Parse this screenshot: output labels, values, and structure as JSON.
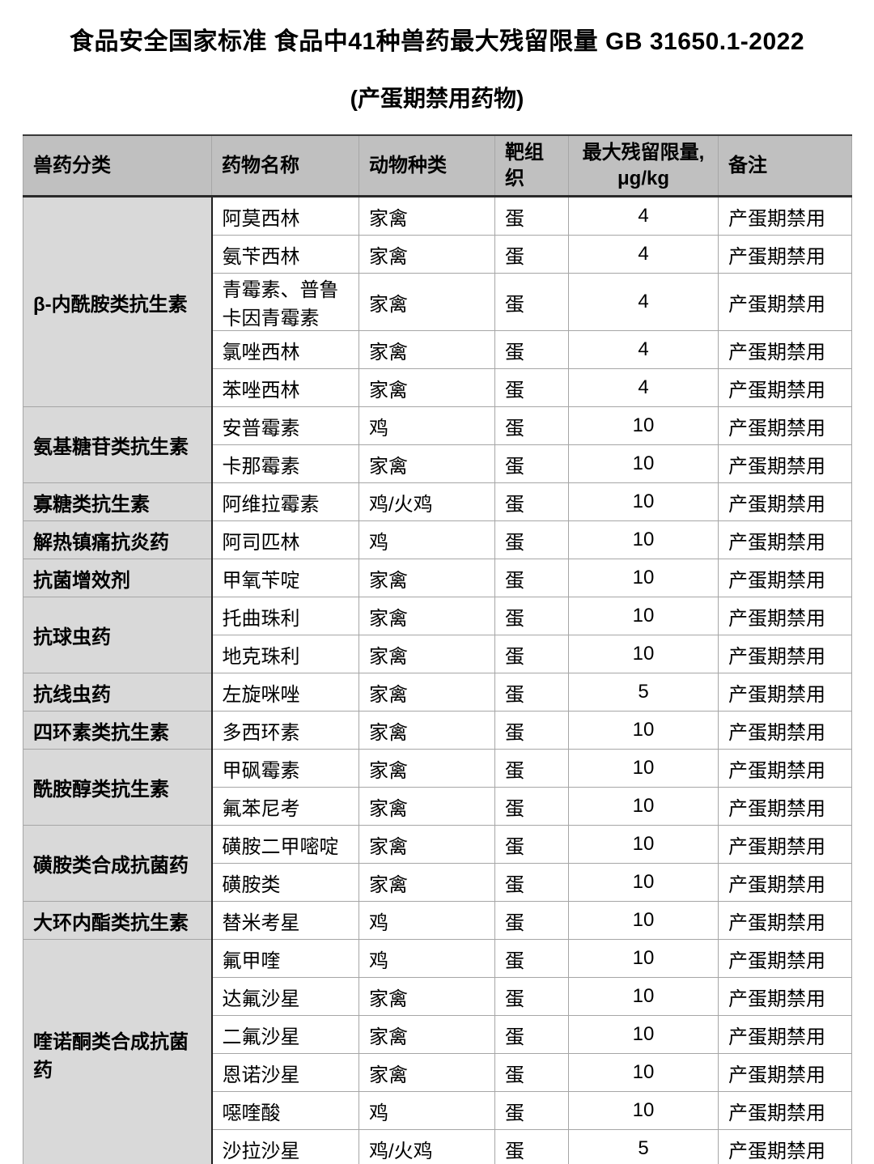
{
  "title": "食品安全国家标准 食品中41种兽药最大残留限量 GB 31650.1-2022",
  "subtitle": "(产蛋期禁用药物)",
  "table": {
    "headers": {
      "classification": "兽药分类",
      "drug": "药物名称",
      "species": "动物种类",
      "tissue": "靶组织",
      "mrl_line1": "最大残留限量,",
      "mrl_line2": "μg/kg",
      "note": "备注"
    },
    "groups": [
      {
        "category": "β-内酰胺类抗生素",
        "rows": [
          {
            "drug": "阿莫西林",
            "species": "家禽",
            "tissue": "蛋",
            "mrl": "4",
            "note": "产蛋期禁用"
          },
          {
            "drug": "氨苄西林",
            "species": "家禽",
            "tissue": "蛋",
            "mrl": "4",
            "note": "产蛋期禁用"
          },
          {
            "drug": "青霉素、普鲁卡因青霉素",
            "species": "家禽",
            "tissue": "蛋",
            "mrl": "4",
            "note": "产蛋期禁用"
          },
          {
            "drug": "氯唑西林",
            "species": "家禽",
            "tissue": "蛋",
            "mrl": "4",
            "note": "产蛋期禁用"
          },
          {
            "drug": "苯唑西林",
            "species": "家禽",
            "tissue": "蛋",
            "mrl": "4",
            "note": "产蛋期禁用"
          }
        ]
      },
      {
        "category": "氨基糖苷类抗生素",
        "rows": [
          {
            "drug": "安普霉素",
            "species": "鸡",
            "tissue": "蛋",
            "mrl": "10",
            "note": "产蛋期禁用"
          },
          {
            "drug": "卡那霉素",
            "species": "家禽",
            "tissue": "蛋",
            "mrl": "10",
            "note": "产蛋期禁用"
          }
        ]
      },
      {
        "category": "寡糖类抗生素",
        "rows": [
          {
            "drug": "阿维拉霉素",
            "species": "鸡/火鸡",
            "tissue": "蛋",
            "mrl": "10",
            "note": "产蛋期禁用"
          }
        ]
      },
      {
        "category": "解热镇痛抗炎药",
        "rows": [
          {
            "drug": "阿司匹林",
            "species": "鸡",
            "tissue": "蛋",
            "mrl": "10",
            "note": "产蛋期禁用"
          }
        ]
      },
      {
        "category": "抗菌增效剂",
        "rows": [
          {
            "drug": "甲氧苄啶",
            "species": "家禽",
            "tissue": "蛋",
            "mrl": "10",
            "note": "产蛋期禁用"
          }
        ]
      },
      {
        "category": "抗球虫药",
        "rows": [
          {
            "drug": "托曲珠利",
            "species": "家禽",
            "tissue": "蛋",
            "mrl": "10",
            "note": "产蛋期禁用"
          },
          {
            "drug": "地克珠利",
            "species": "家禽",
            "tissue": "蛋",
            "mrl": "10",
            "note": "产蛋期禁用"
          }
        ]
      },
      {
        "category": "抗线虫药",
        "rows": [
          {
            "drug": "左旋咪唑",
            "species": "家禽",
            "tissue": "蛋",
            "mrl": "5",
            "note": "产蛋期禁用"
          }
        ]
      },
      {
        "category": "四环素类抗生素",
        "rows": [
          {
            "drug": "多西环素",
            "species": "家禽",
            "tissue": "蛋",
            "mrl": "10",
            "note": "产蛋期禁用"
          }
        ]
      },
      {
        "category": "酰胺醇类抗生素",
        "rows": [
          {
            "drug": "甲砜霉素",
            "species": "家禽",
            "tissue": "蛋",
            "mrl": "10",
            "note": "产蛋期禁用"
          },
          {
            "drug": "氟苯尼考",
            "species": "家禽",
            "tissue": "蛋",
            "mrl": "10",
            "note": "产蛋期禁用"
          }
        ]
      },
      {
        "category": "磺胺类合成抗菌药",
        "rows": [
          {
            "drug": "磺胺二甲嘧啶",
            "species": "家禽",
            "tissue": "蛋",
            "mrl": "10",
            "note": "产蛋期禁用"
          },
          {
            "drug": "磺胺类",
            "species": "家禽",
            "tissue": "蛋",
            "mrl": "10",
            "note": "产蛋期禁用"
          }
        ]
      },
      {
        "category": "大环内酯类抗生素",
        "rows": [
          {
            "drug": "替米考星",
            "species": "鸡",
            "tissue": "蛋",
            "mrl": "10",
            "note": "产蛋期禁用"
          }
        ]
      },
      {
        "category": "喹诺酮类合成抗菌药",
        "rows": [
          {
            "drug": "氟甲喹",
            "species": "鸡",
            "tissue": "蛋",
            "mrl": "10",
            "note": "产蛋期禁用"
          },
          {
            "drug": "达氟沙星",
            "species": "家禽",
            "tissue": "蛋",
            "mrl": "10",
            "note": "产蛋期禁用"
          },
          {
            "drug": "二氟沙星",
            "species": "家禽",
            "tissue": "蛋",
            "mrl": "10",
            "note": "产蛋期禁用"
          },
          {
            "drug": "恩诺沙星",
            "species": "家禽",
            "tissue": "蛋",
            "mrl": "10",
            "note": "产蛋期禁用"
          },
          {
            "drug": "噁喹酸",
            "species": "鸡",
            "tissue": "蛋",
            "mrl": "10",
            "note": "产蛋期禁用"
          },
          {
            "drug": "沙拉沙星",
            "species": "鸡/火鸡",
            "tissue": "蛋",
            "mrl": "5",
            "note": "产蛋期禁用"
          }
        ]
      }
    ]
  }
}
